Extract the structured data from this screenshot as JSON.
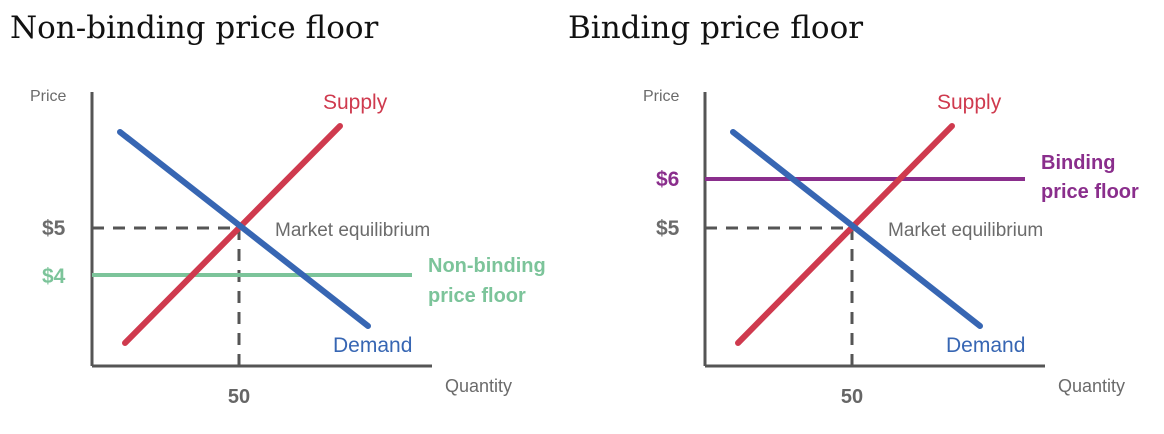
{
  "colors": {
    "supply": "#cf3a4e",
    "demand": "#3766b3",
    "axis": "#555555",
    "guide": "#555555",
    "non_binding_floor": "#7cc49a",
    "binding_floor": "#8a2e8c",
    "muted_text": "#6b6b6b"
  },
  "panels": [
    {
      "title": "Non-binding price floor",
      "y_axis_label": "Price",
      "x_axis_label": "Quantity",
      "supply_label": "Supply",
      "demand_label": "Demand",
      "equilibrium_label": "Market equilibrium",
      "equilibrium_price": "$5",
      "equilibrium_quantity": "50",
      "floor_price": "$4",
      "floor_label_lines": [
        "Non-binding",
        "price floor"
      ],
      "floor_type": "non-binding"
    },
    {
      "title": "Binding price floor",
      "y_axis_label": "Price",
      "x_axis_label": "Quantity",
      "supply_label": "Supply",
      "demand_label": "Demand",
      "equilibrium_label": "Market equilibrium",
      "equilibrium_price": "$5",
      "equilibrium_quantity": "50",
      "floor_price": "$6",
      "floor_label_lines": [
        "Binding",
        "price floor"
      ],
      "floor_type": "binding"
    }
  ]
}
